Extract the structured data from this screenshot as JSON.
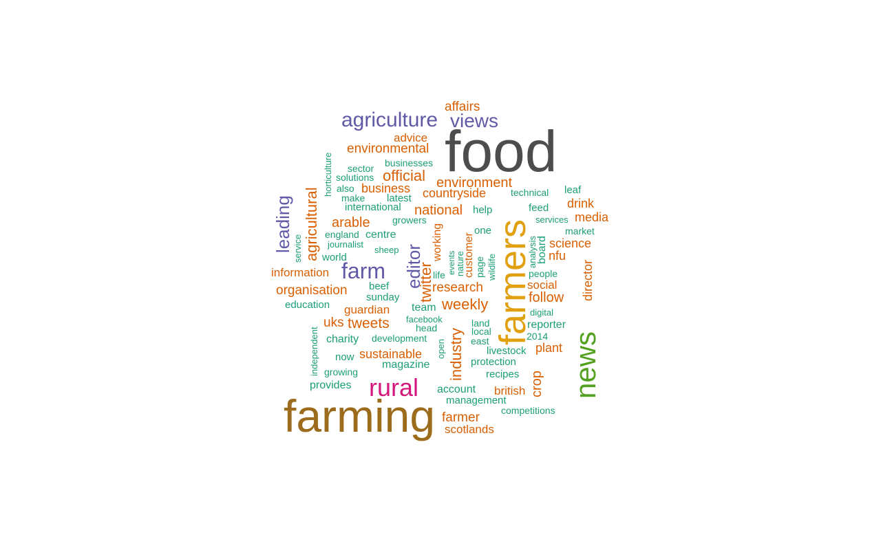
{
  "colors": {
    "dark_gray": "#4d4d4d",
    "brown": "#9c6b1c",
    "purple": "#6059a5",
    "magenta": "#d4177b",
    "green": "#54a021",
    "gold": "#e0a010",
    "orange": "#d95f02",
    "teal": "#1b9e77"
  },
  "words": [
    {
      "text": "food",
      "color": "dark_gray",
      "orientation": "horizontal"
    },
    {
      "text": "farming",
      "color": "brown",
      "orientation": "horizontal"
    },
    {
      "text": "farmers",
      "color": "gold",
      "orientation": "vertical"
    },
    {
      "text": "news",
      "color": "green",
      "orientation": "vertical"
    },
    {
      "text": "rural",
      "color": "magenta",
      "orientation": "horizontal"
    },
    {
      "text": "agriculture",
      "color": "purple",
      "orientation": "horizontal"
    },
    {
      "text": "views",
      "color": "purple",
      "orientation": "horizontal"
    },
    {
      "text": "farm",
      "color": "purple",
      "orientation": "horizontal"
    },
    {
      "text": "editor",
      "color": "purple",
      "orientation": "vertical"
    },
    {
      "text": "leading",
      "color": "purple",
      "orientation": "vertical"
    },
    {
      "text": "agricultural",
      "color": "orange",
      "orientation": "vertical"
    },
    {
      "text": "affairs",
      "color": "orange",
      "orientation": "horizontal"
    },
    {
      "text": "advice",
      "color": "orange",
      "orientation": "horizontal"
    },
    {
      "text": "environmental",
      "color": "orange",
      "orientation": "horizontal"
    },
    {
      "text": "official",
      "color": "orange",
      "orientation": "horizontal"
    },
    {
      "text": "environment",
      "color": "orange",
      "orientation": "horizontal"
    },
    {
      "text": "business",
      "color": "orange",
      "orientation": "horizontal"
    },
    {
      "text": "countryside",
      "color": "orange",
      "orientation": "horizontal"
    },
    {
      "text": "national",
      "color": "orange",
      "orientation": "horizontal"
    },
    {
      "text": "arable",
      "color": "orange",
      "orientation": "horizontal"
    },
    {
      "text": "drink",
      "color": "orange",
      "orientation": "horizontal"
    },
    {
      "text": "media",
      "color": "orange",
      "orientation": "horizontal"
    },
    {
      "text": "science",
      "color": "orange",
      "orientation": "horizontal"
    },
    {
      "text": "nfu",
      "color": "orange",
      "orientation": "horizontal"
    },
    {
      "text": "director",
      "color": "orange",
      "orientation": "vertical"
    },
    {
      "text": "information",
      "color": "orange",
      "orientation": "horizontal"
    },
    {
      "text": "organisation",
      "color": "orange",
      "orientation": "horizontal"
    },
    {
      "text": "twitter",
      "color": "orange",
      "orientation": "vertical"
    },
    {
      "text": "research",
      "color": "orange",
      "orientation": "horizontal"
    },
    {
      "text": "social",
      "color": "orange",
      "orientation": "horizontal"
    },
    {
      "text": "follow",
      "color": "orange",
      "orientation": "horizontal"
    },
    {
      "text": "weekly",
      "color": "orange",
      "orientation": "horizontal"
    },
    {
      "text": "guardian",
      "color": "orange",
      "orientation": "horizontal"
    },
    {
      "text": "uks",
      "color": "orange",
      "orientation": "horizontal"
    },
    {
      "text": "tweets",
      "color": "orange",
      "orientation": "horizontal"
    },
    {
      "text": "industry",
      "color": "orange",
      "orientation": "vertical"
    },
    {
      "text": "sustainable",
      "color": "orange",
      "orientation": "horizontal"
    },
    {
      "text": "plant",
      "color": "orange",
      "orientation": "horizontal"
    },
    {
      "text": "crop",
      "color": "orange",
      "orientation": "vertical"
    },
    {
      "text": "british",
      "color": "orange",
      "orientation": "horizontal"
    },
    {
      "text": "farmer",
      "color": "orange",
      "orientation": "horizontal"
    },
    {
      "text": "scotlands",
      "color": "orange",
      "orientation": "horizontal"
    },
    {
      "text": "customer",
      "color": "orange",
      "orientation": "vertical"
    },
    {
      "text": "working",
      "color": "orange",
      "orientation": "vertical"
    },
    {
      "text": "horticulture",
      "color": "teal",
      "orientation": "vertical"
    },
    {
      "text": "businesses",
      "color": "teal",
      "orientation": "horizontal"
    },
    {
      "text": "sector",
      "color": "teal",
      "orientation": "horizontal"
    },
    {
      "text": "solutions",
      "color": "teal",
      "orientation": "horizontal"
    },
    {
      "text": "also",
      "color": "teal",
      "orientation": "horizontal"
    },
    {
      "text": "make",
      "color": "teal",
      "orientation": "horizontal"
    },
    {
      "text": "latest",
      "color": "teal",
      "orientation": "horizontal"
    },
    {
      "text": "international",
      "color": "teal",
      "orientation": "horizontal"
    },
    {
      "text": "technical",
      "color": "teal",
      "orientation": "horizontal"
    },
    {
      "text": "leaf",
      "color": "teal",
      "orientation": "horizontal"
    },
    {
      "text": "feed",
      "color": "teal",
      "orientation": "horizontal"
    },
    {
      "text": "help",
      "color": "teal",
      "orientation": "horizontal"
    },
    {
      "text": "services",
      "color": "teal",
      "orientation": "horizontal"
    },
    {
      "text": "market",
      "color": "teal",
      "orientation": "horizontal"
    },
    {
      "text": "growers",
      "color": "teal",
      "orientation": "horizontal"
    },
    {
      "text": "one",
      "color": "teal",
      "orientation": "horizontal"
    },
    {
      "text": "england",
      "color": "teal",
      "orientation": "horizontal"
    },
    {
      "text": "centre",
      "color": "teal",
      "orientation": "horizontal"
    },
    {
      "text": "journalist",
      "color": "teal",
      "orientation": "horizontal"
    },
    {
      "text": "sheep",
      "color": "teal",
      "orientation": "horizontal"
    },
    {
      "text": "service",
      "color": "teal",
      "orientation": "vertical"
    },
    {
      "text": "world",
      "color": "teal",
      "orientation": "horizontal"
    },
    {
      "text": "events",
      "color": "teal",
      "orientation": "vertical"
    },
    {
      "text": "nature",
      "color": "teal",
      "orientation": "vertical"
    },
    {
      "text": "page",
      "color": "teal",
      "orientation": "vertical"
    },
    {
      "text": "wildlife",
      "color": "teal",
      "orientation": "vertical"
    },
    {
      "text": "analysis",
      "color": "teal",
      "orientation": "vertical"
    },
    {
      "text": "board",
      "color": "teal",
      "orientation": "vertical"
    },
    {
      "text": "life",
      "color": "teal",
      "orientation": "horizontal"
    },
    {
      "text": "people",
      "color": "teal",
      "orientation": "horizontal"
    },
    {
      "text": "beef",
      "color": "teal",
      "orientation": "horizontal"
    },
    {
      "text": "sunday",
      "color": "teal",
      "orientation": "horizontal"
    },
    {
      "text": "education",
      "color": "teal",
      "orientation": "horizontal"
    },
    {
      "text": "team",
      "color": "teal",
      "orientation": "horizontal"
    },
    {
      "text": "digital",
      "color": "teal",
      "orientation": "horizontal"
    },
    {
      "text": "facebook",
      "color": "teal",
      "orientation": "horizontal"
    },
    {
      "text": "head",
      "color": "teal",
      "orientation": "horizontal"
    },
    {
      "text": "land",
      "color": "teal",
      "orientation": "horizontal"
    },
    {
      "text": "local",
      "color": "teal",
      "orientation": "horizontal"
    },
    {
      "text": "reporter",
      "color": "teal",
      "orientation": "horizontal"
    },
    {
      "text": "east",
      "color": "teal",
      "orientation": "horizontal"
    },
    {
      "text": "2014",
      "color": "teal",
      "orientation": "horizontal"
    },
    {
      "text": "independent",
      "color": "teal",
      "orientation": "vertical"
    },
    {
      "text": "charity",
      "color": "teal",
      "orientation": "horizontal"
    },
    {
      "text": "development",
      "color": "teal",
      "orientation": "horizontal"
    },
    {
      "text": "open",
      "color": "teal",
      "orientation": "vertical"
    },
    {
      "text": "livestock",
      "color": "teal",
      "orientation": "horizontal"
    },
    {
      "text": "now",
      "color": "teal",
      "orientation": "horizontal"
    },
    {
      "text": "protection",
      "color": "teal",
      "orientation": "horizontal"
    },
    {
      "text": "magazine",
      "color": "teal",
      "orientation": "horizontal"
    },
    {
      "text": "growing",
      "color": "teal",
      "orientation": "horizontal"
    },
    {
      "text": "recipes",
      "color": "teal",
      "orientation": "horizontal"
    },
    {
      "text": "provides",
      "color": "teal",
      "orientation": "horizontal"
    },
    {
      "text": "account",
      "color": "teal",
      "orientation": "horizontal"
    },
    {
      "text": "management",
      "color": "teal",
      "orientation": "horizontal"
    },
    {
      "text": "competitions",
      "color": "teal",
      "orientation": "horizontal"
    }
  ]
}
